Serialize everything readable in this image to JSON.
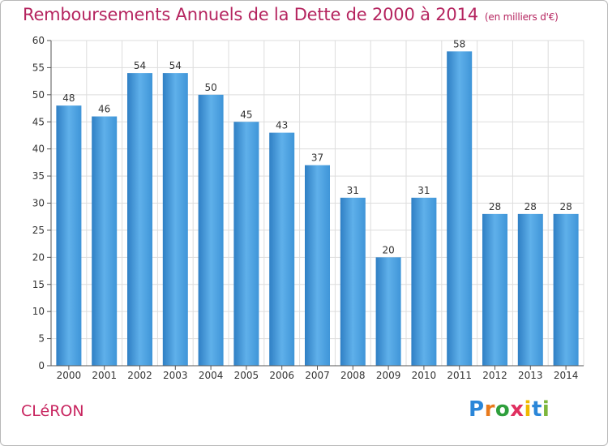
{
  "header": {
    "title": "Remboursements Annuels de la Dette de 2000 à 2014",
    "subtitle": "(en milliers d'€)"
  },
  "footer": {
    "commune": "CLéRON",
    "brand": [
      "P",
      "r",
      "o",
      "x",
      "i",
      "t",
      "i"
    ],
    "brand_colors": [
      "#2a86d8",
      "#e87a1c",
      "#2e9f3c",
      "#e03060",
      "#f0b800",
      "#2a86d8",
      "#7db63c"
    ]
  },
  "colors": {
    "bar": "#3f95d8",
    "bar_light": "#5fb0ea",
    "bar_dark": "#2f7fc4",
    "grid": "#dddddd",
    "axis": "#555555",
    "text": "#333333"
  },
  "chart_data": {
    "type": "bar",
    "title": "Remboursements Annuels de la Dette de 2000 à 2014",
    "subtitle": "(en milliers d'€)",
    "xlabel": "",
    "ylabel": "",
    "categories": [
      "2000",
      "2001",
      "2002",
      "2003",
      "2004",
      "2005",
      "2006",
      "2007",
      "2008",
      "2009",
      "2010",
      "2011",
      "2012",
      "2013",
      "2014"
    ],
    "values": [
      48,
      46,
      54,
      54,
      50,
      45,
      43,
      37,
      31,
      20,
      31,
      58,
      28,
      28,
      28
    ],
    "ylim": [
      0,
      60
    ],
    "yticks": [
      0,
      5,
      10,
      15,
      20,
      25,
      30,
      35,
      40,
      45,
      50,
      55,
      60
    ],
    "grid": true,
    "data_labels": true
  }
}
